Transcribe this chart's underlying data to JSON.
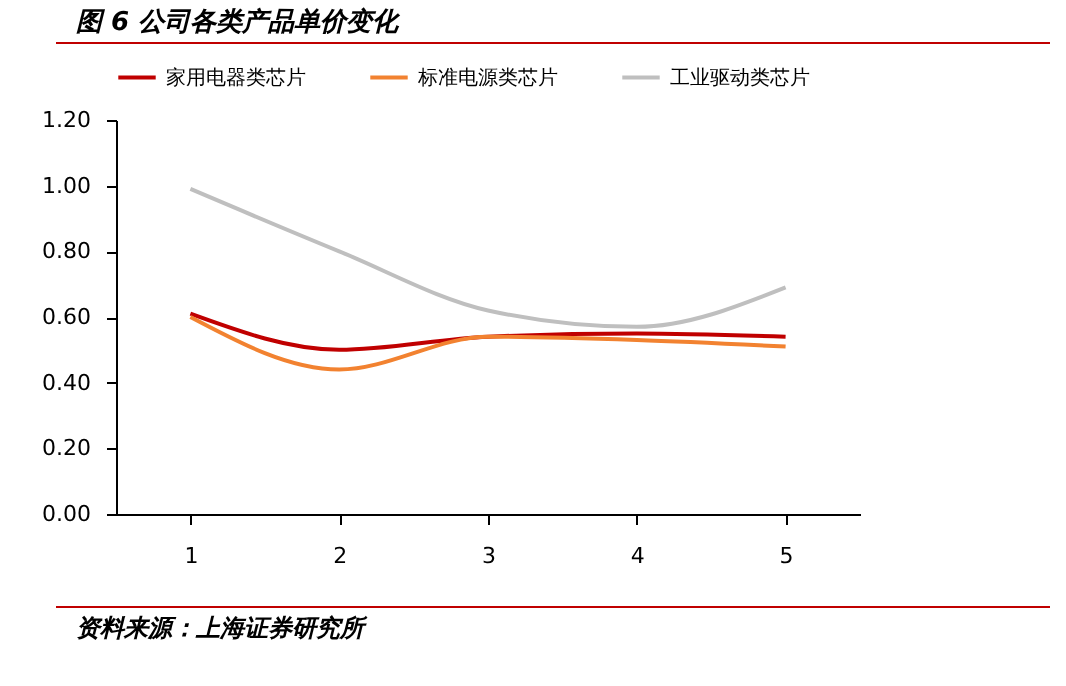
{
  "chart_data": {
    "type": "line",
    "title": "图 6 公司各类产品单价变化",
    "annotations": [
      "资料来源：上海证券研究所"
    ],
    "categories": [
      "1",
      "2",
      "3",
      "4",
      "5"
    ],
    "series": [
      {
        "name": "家用电器类芯片",
        "color": "#c00000",
        "values": [
          0.61,
          0.5,
          0.54,
          0.55,
          0.54
        ]
      },
      {
        "name": "标准电源类芯片",
        "color": "#f28230",
        "values": [
          0.6,
          0.44,
          0.54,
          0.53,
          0.51
        ]
      },
      {
        "name": "工业驱动类芯片",
        "color": "#bfbfbf",
        "values": [
          0.99,
          0.8,
          0.62,
          0.57,
          0.69
        ]
      }
    ],
    "ylim": [
      0,
      1.2
    ],
    "yticks": [
      {
        "value": 0,
        "label": "0.00"
      },
      {
        "value": 0.2,
        "label": "0.20"
      },
      {
        "value": 0.4,
        "label": "0.40"
      },
      {
        "value": 0.6,
        "label": "0.60"
      },
      {
        "value": 0.8,
        "label": "0.80"
      },
      {
        "value": 1.0,
        "label": "1.00"
      },
      {
        "value": 1.2,
        "label": "1.20"
      }
    ],
    "grid": false,
    "legend": "top",
    "marker": "none",
    "line_style": "solid"
  }
}
